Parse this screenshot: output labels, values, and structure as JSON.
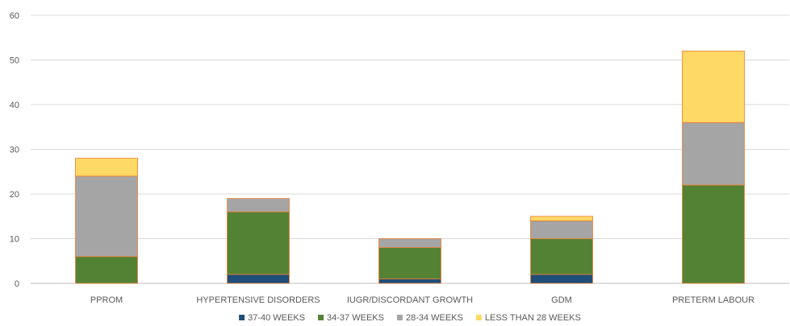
{
  "chart_data": {
    "type": "bar",
    "stacked": true,
    "title": "",
    "xlabel": "",
    "ylabel": "",
    "ylim": [
      0,
      60
    ],
    "yticks": [
      0,
      10,
      20,
      30,
      40,
      50,
      60
    ],
    "grid": true,
    "legend_position": "bottom",
    "categories": [
      "PPROM",
      "HYPERTENSIVE DISORDERS",
      "IUGR/DISCORDANT GROWTH",
      "GDM",
      "PRETERM LABOUR"
    ],
    "series": [
      {
        "name": "37-40 WEEKS",
        "color": "#1f4e79",
        "values": [
          0,
          2,
          1,
          2,
          0
        ]
      },
      {
        "name": "34-37 WEEKS",
        "color": "#548235",
        "values": [
          6,
          14,
          7,
          8,
          22
        ]
      },
      {
        "name": "28-34 WEEKS",
        "color": "#a5a5a5",
        "values": [
          18,
          3,
          2,
          4,
          14
        ]
      },
      {
        "name": "LESS THAN 28 WEEKS",
        "color": "#ffd966",
        "values": [
          4,
          0,
          0,
          1,
          16
        ]
      }
    ],
    "colors": {
      "grid": "#d9d9d9",
      "axis": "#bfbfbf",
      "bar_outline": "#ed7d31",
      "text": "#595959"
    }
  }
}
